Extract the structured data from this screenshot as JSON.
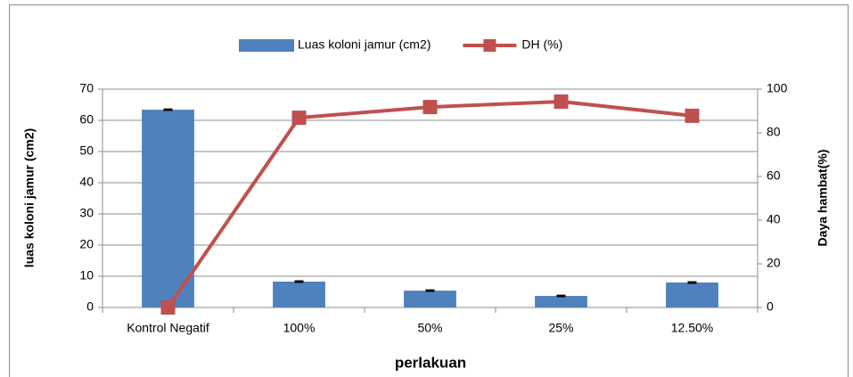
{
  "chart_data": {
    "type": "combo",
    "categories": [
      "Kontrol Negatif",
      "100%",
      "50%",
      "25%",
      "12.50%"
    ],
    "series": [
      {
        "name": "Luas koloni jamur (cm2)",
        "type": "bar",
        "color": "#4f81bd",
        "values": [
          63.4,
          8.3,
          5.4,
          3.7,
          8.0
        ],
        "errors": [
          0.2,
          0.2,
          0.2,
          0.2,
          0.2
        ]
      },
      {
        "name": "DH (%)",
        "type": "line",
        "axis": "y2",
        "color": "#c0504d",
        "values": [
          0,
          86.9,
          91.8,
          94.3,
          87.8
        ]
      }
    ],
    "xlabel": "perlakuan",
    "ylabel": "luas koloni jamur (cm2)",
    "y2label": "Daya hambat(%)",
    "ylim": [
      0,
      70
    ],
    "yticks": [
      0,
      10,
      20,
      30,
      40,
      50,
      60,
      70
    ],
    "y2lim": [
      0,
      100
    ],
    "y2ticks": [
      0,
      20,
      40,
      60,
      80,
      100
    ],
    "grid": true,
    "legend": "top"
  }
}
